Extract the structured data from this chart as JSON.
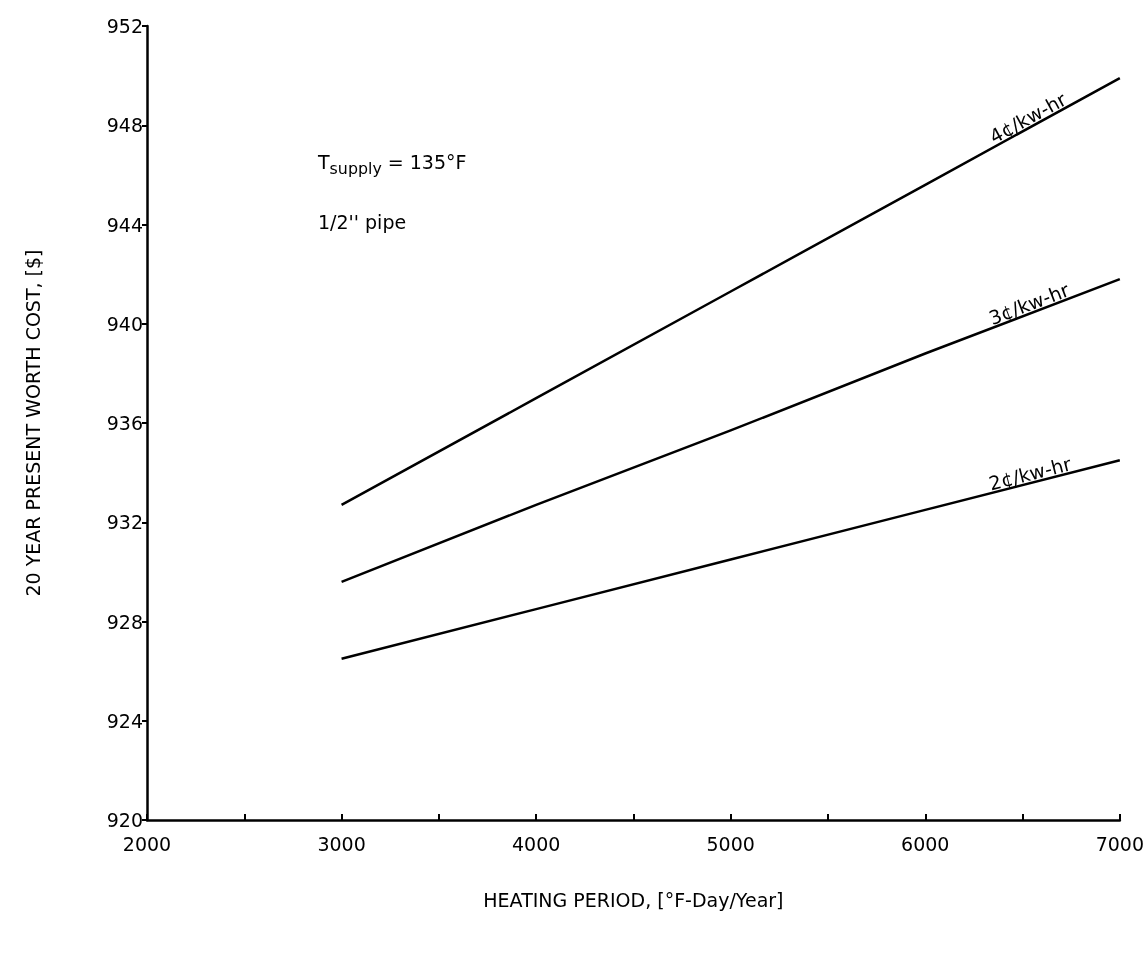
{
  "chart_data": {
    "type": "line",
    "xlabel": "HEATING PERIOD, [°F-Day/Year]",
    "ylabel": "20 YEAR PRESENT WORTH COST, [$]",
    "x": [
      3000,
      4000,
      5000,
      6000,
      7000
    ],
    "series": [
      {
        "name": "4¢/kw-hr",
        "color": "#000000",
        "values": [
          932.7,
          937.0,
          941.3,
          945.6,
          949.9
        ]
      },
      {
        "name": "3¢/kw-hr",
        "color": "#000000",
        "values": [
          929.6,
          932.7,
          935.7,
          938.8,
          941.8
        ]
      },
      {
        "name": "2¢/kw-hr",
        "color": "#000000",
        "values": [
          926.5,
          928.5,
          930.5,
          932.5,
          934.5
        ]
      }
    ],
    "xlim": [
      2000,
      7000
    ],
    "xticks": [
      2000,
      {
        "value": 2500,
        "label": null
      },
      3000,
      {
        "value": 3500,
        "label": null
      },
      4000,
      {
        "value": 4500,
        "label": null
      },
      5000,
      {
        "value": 5500,
        "label": null
      },
      6000,
      {
        "value": 6500,
        "label": null
      },
      7000
    ],
    "ylim": [
      920,
      952
    ],
    "yticks": [
      920,
      924,
      928,
      932,
      936,
      940,
      944,
      948,
      952
    ],
    "annotations": [
      "T$_{supply}$ = 135°F",
      "1/2'' pipe"
    ],
    "grid": false,
    "legend": false,
    "marker": "none",
    "line_style": "solid"
  }
}
